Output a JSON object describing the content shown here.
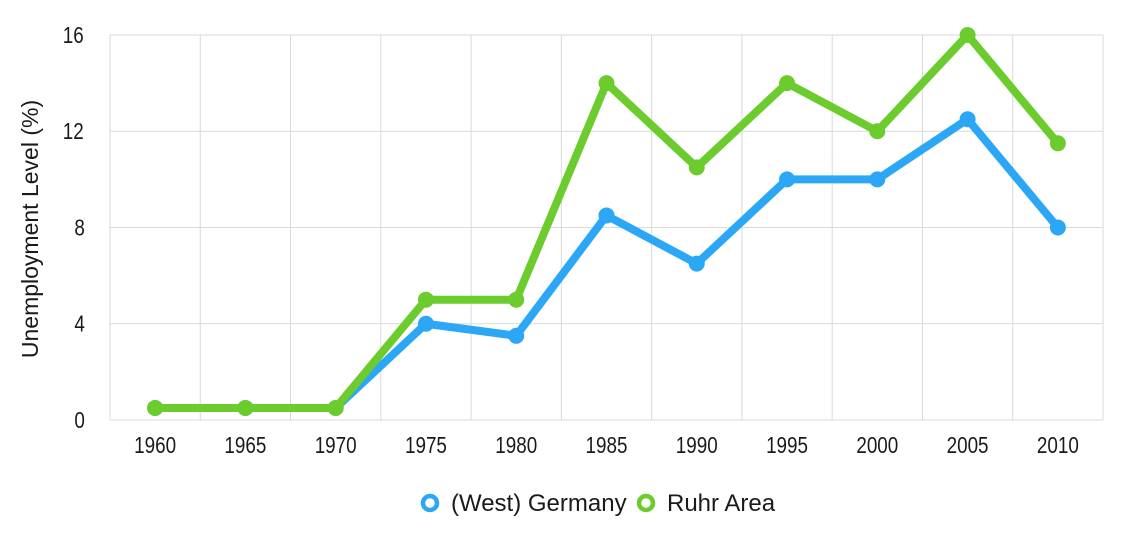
{
  "chart_data": {
    "type": "line",
    "title": "",
    "xlabel": "",
    "ylabel": "Unemployment Level (%)",
    "x": [
      "1960",
      "1965",
      "1970",
      "1975",
      "1980",
      "1985",
      "1990",
      "1995",
      "2000",
      "2005",
      "2010"
    ],
    "yticks": [
      "0",
      "4",
      "8",
      "12",
      "16"
    ],
    "ylim": [
      0,
      16
    ],
    "grid": true,
    "legend_position": "bottom-center",
    "series": [
      {
        "name": "(West) Germany",
        "color": "#2ca7f5",
        "values": [
          0.5,
          0.5,
          0.5,
          4.0,
          3.5,
          8.5,
          6.5,
          10.0,
          10.0,
          12.5,
          8.0
        ]
      },
      {
        "name": "Ruhr Area",
        "color": "#6ccc2e",
        "values": [
          0.5,
          0.5,
          0.5,
          5.0,
          5.0,
          14.0,
          10.5,
          14.0,
          12.0,
          16.0,
          11.5
        ]
      }
    ]
  }
}
